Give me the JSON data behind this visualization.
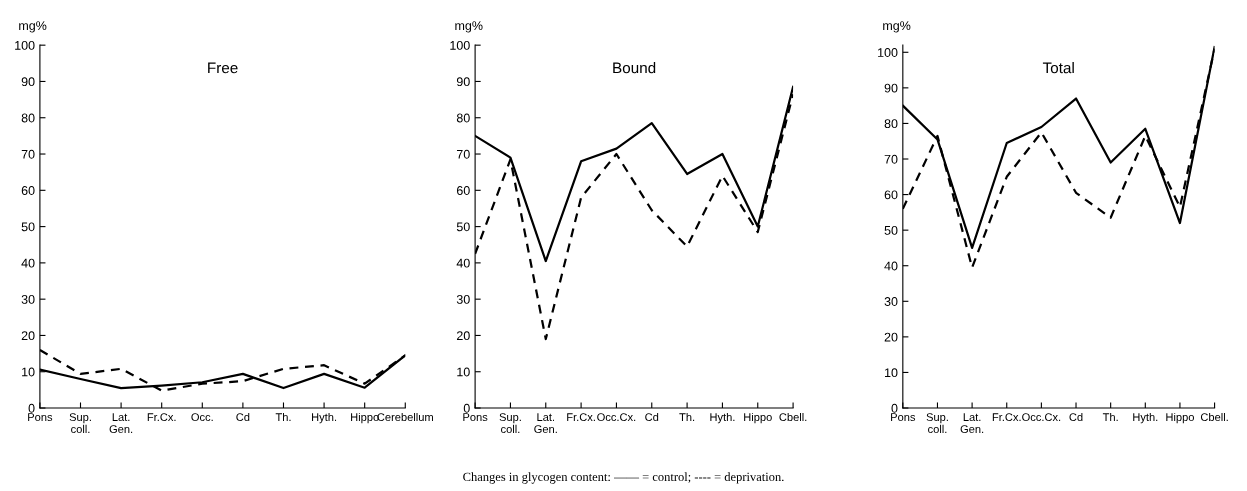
{
  "chart_data": [
    {
      "type": "line",
      "title": "Free",
      "ylabel": "mg%",
      "categories": [
        "Pons",
        "Sup.\ncoll.",
        "Lat.\nGen.",
        "Fr.Cx.",
        "Occ.",
        "Cd",
        "Th.",
        "Hyth.",
        "Hippo",
        "Cerebellum"
      ],
      "ylim": [
        0,
        100
      ],
      "yticks": [
        0,
        10,
        20,
        30,
        40,
        50,
        60,
        70,
        80,
        90,
        100
      ],
      "grid": false,
      "marker": "none",
      "series": [
        {
          "color": "#000000",
          "line_style": "solid",
          "values": [
            10.6,
            8,
            5.5,
            6.2,
            7.1,
            9.4,
            5.5,
            9.4,
            5.6,
            14.5
          ]
        },
        {
          "color": "#000000",
          "line_style": "dashed",
          "values": [
            16,
            9.4,
            10.8,
            4.8,
            6.7,
            7.4,
            10.8,
            11.8,
            6.7,
            14.5
          ]
        }
      ]
    },
    {
      "type": "line",
      "title": "Bound",
      "ylabel": "mg%",
      "categories": [
        "Pons",
        "Sup.\ncoll.",
        "Lat.\nGen.",
        "Fr.Cx.",
        "Occ.Cx.",
        "Cd",
        "Th.",
        "Hyth.",
        "Hippo",
        "Cbell."
      ],
      "ylim": [
        0,
        100
      ],
      "yticks": [
        0,
        10,
        20,
        30,
        40,
        50,
        60,
        70,
        80,
        90,
        100
      ],
      "grid": false,
      "marker": "none",
      "series": [
        {
          "color": "#000000",
          "line_style": "solid",
          "values": [
            75,
            69,
            40.5,
            68,
            71.5,
            78.5,
            64.5,
            70,
            50,
            88.5
          ]
        },
        {
          "color": "#000000",
          "line_style": "dashed",
          "values": [
            42.5,
            68.5,
            19,
            58,
            70,
            54.5,
            44.5,
            64,
            48.5,
            86.5
          ]
        }
      ]
    },
    {
      "type": "line",
      "title": "Total",
      "ylabel": "mg%",
      "categories": [
        "Pons",
        "Sup.\ncoll.",
        "Lat.\nGen.",
        "Fr.Cx.",
        "Occ.Cx.",
        "Cd",
        "Th.",
        "Hyth.",
        "Hippo",
        "Cbell."
      ],
      "ylim": [
        0,
        102
      ],
      "yticks": [
        0,
        10,
        20,
        30,
        40,
        50,
        60,
        70,
        80,
        90,
        100
      ],
      "grid": false,
      "marker": "none",
      "annotations": [
        "Changes in glycogen content: —— = control; ---- = deprivation."
      ],
      "series": [
        {
          "color": "#000000",
          "line_style": "solid",
          "values": [
            85,
            75.5,
            45,
            74.5,
            79,
            87,
            69,
            78.5,
            52,
            101.5
          ]
        },
        {
          "color": "#000000",
          "line_style": "dashed",
          "values": [
            56,
            76.5,
            39.5,
            65,
            77.5,
            60.5,
            53.5,
            76.5,
            56.5,
            101
          ]
        }
      ]
    }
  ]
}
